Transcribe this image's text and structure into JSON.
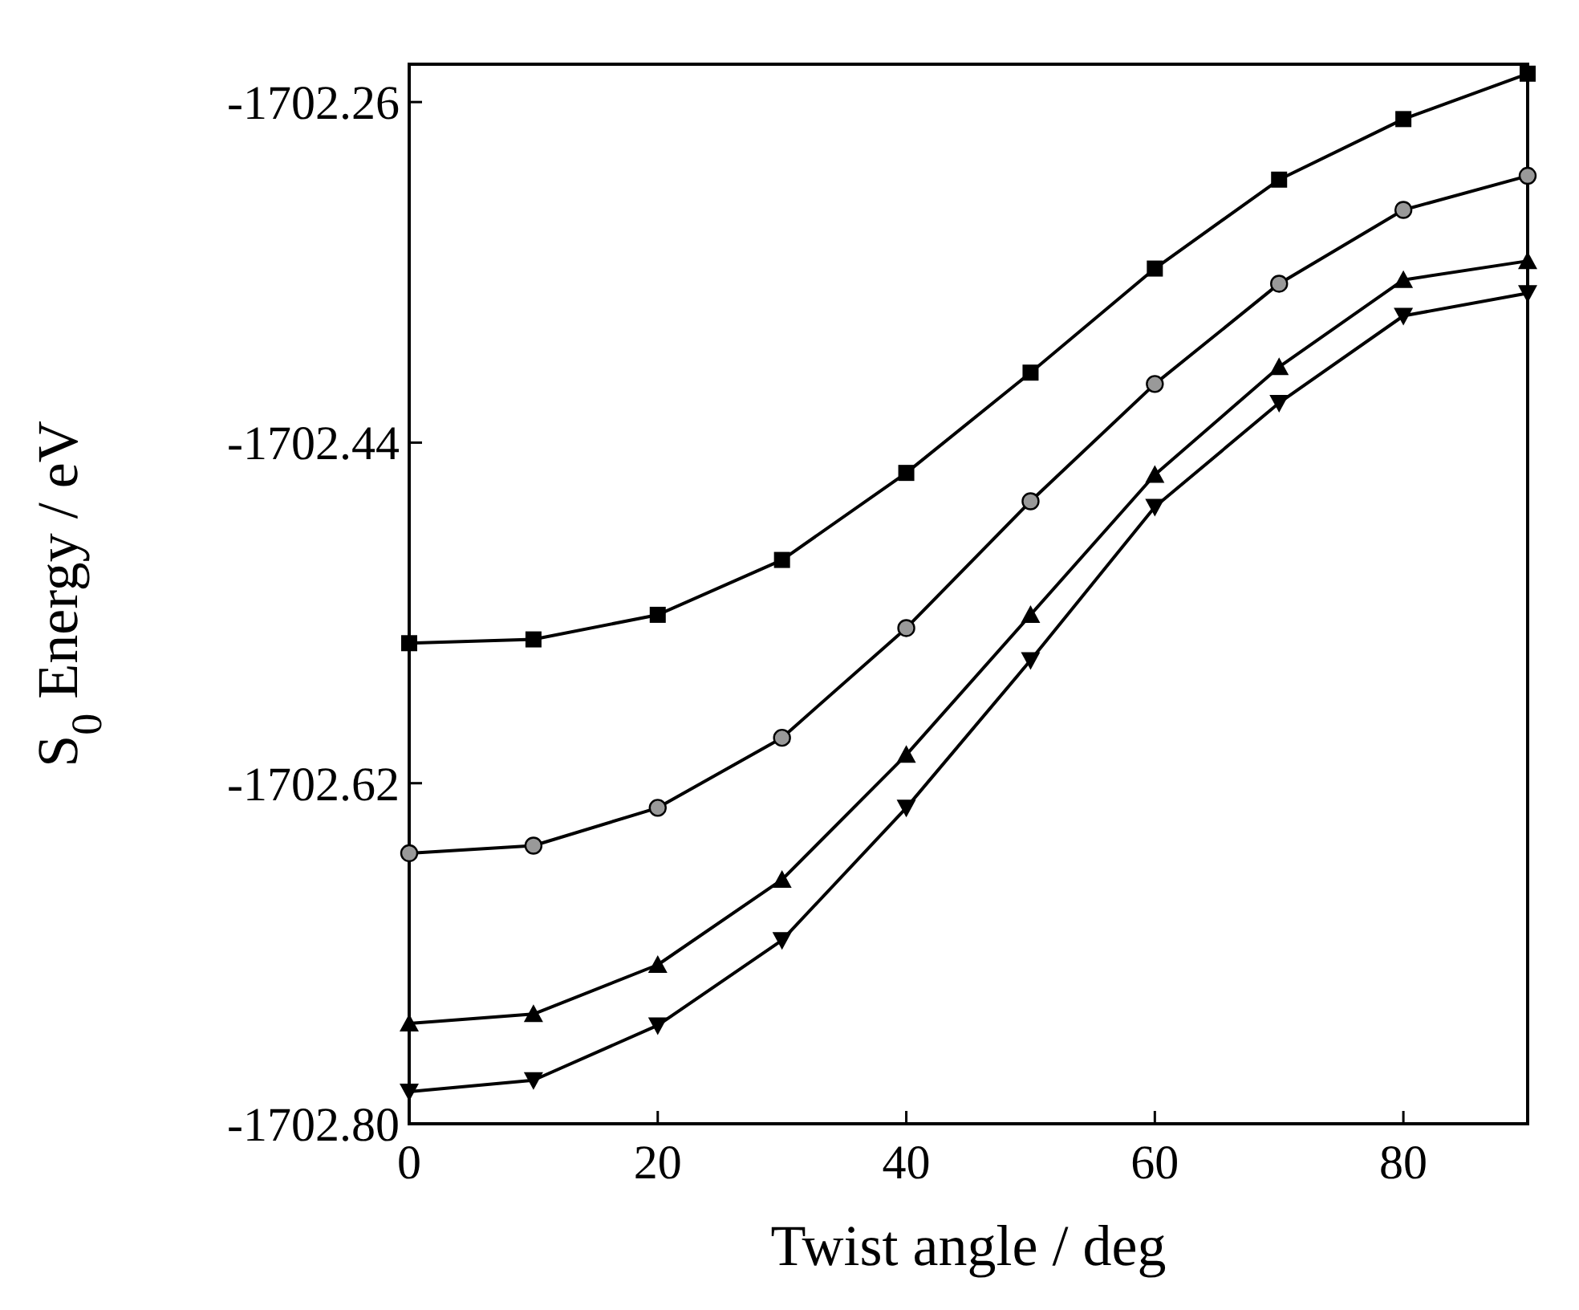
{
  "chart_data": {
    "type": "line",
    "xlabel": "Twist angle / deg",
    "ylabel": "S$_{0}$ Energy / eV",
    "x": [
      0,
      10,
      20,
      30,
      40,
      50,
      60,
      70,
      80,
      90
    ],
    "xlim": [
      0,
      90
    ],
    "xticks": [
      0,
      20,
      40,
      60,
      80
    ],
    "ylim": [
      -1702.8,
      -1702.24
    ],
    "yticks": [
      {
        "value": -1702.8,
        "label": "-1702.80"
      },
      {
        "value": -1702.62,
        "label": "-1702.62"
      },
      {
        "value": -1702.44,
        "label": "-1702.44"
      },
      {
        "value": -1702.26,
        "label": "-1702.26"
      }
    ],
    "grid": false,
    "series": [
      {
        "color": "#000000",
        "marker": "square",
        "values": [
          -1702.546,
          -1702.544,
          -1702.531,
          -1702.502,
          -1702.456,
          -1702.403,
          -1702.348,
          -1702.301,
          -1702.269,
          -1702.245
        ]
      },
      {
        "color": "#000000",
        "marker": "circle",
        "values": [
          -1702.657,
          -1702.653,
          -1702.633,
          -1702.596,
          -1702.538,
          -1702.471,
          -1702.409,
          -1702.356,
          -1702.317,
          -1702.299
        ]
      },
      {
        "color": "#000000",
        "marker": "triangle",
        "values": [
          -1702.747,
          -1702.742,
          -1702.716,
          -1702.671,
          -1702.605,
          -1702.531,
          -1702.457,
          -1702.4,
          -1702.354,
          -1702.344
        ]
      },
      {
        "color": "#000000",
        "marker": "triangle-down",
        "values": [
          -1702.783,
          -1702.777,
          -1702.748,
          -1702.703,
          -1702.633,
          -1702.555,
          -1702.474,
          -1702.419,
          -1702.373,
          -1702.361
        ]
      }
    ]
  }
}
